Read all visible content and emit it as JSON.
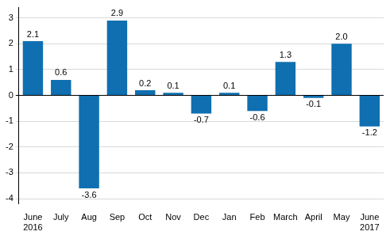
{
  "chart_data": {
    "type": "bar",
    "categories": [
      "June 2016",
      "July",
      "Aug",
      "Sep",
      "Oct",
      "Nov",
      "Dec",
      "Jan",
      "Feb",
      "March",
      "April",
      "May",
      "June 2017"
    ],
    "values": [
      2.1,
      0.6,
      -3.6,
      2.9,
      0.2,
      0.1,
      -0.7,
      0.1,
      -0.6,
      1.3,
      -0.1,
      2.0,
      -1.2
    ],
    "value_labels": [
      "2.1",
      "0.6",
      "-3.6",
      "2.9",
      "0.2",
      "0.1",
      "-0.7",
      "0.1",
      "-0.6",
      "1.3",
      "-0.1",
      "2.0",
      "-1.2"
    ],
    "color": "#0f6fb0",
    "ylim": [
      -4.2,
      3.4
    ],
    "yticks": [
      -4,
      -3,
      -2,
      -1,
      0,
      1,
      2,
      3
    ],
    "grid": true,
    "data_labels": true
  }
}
